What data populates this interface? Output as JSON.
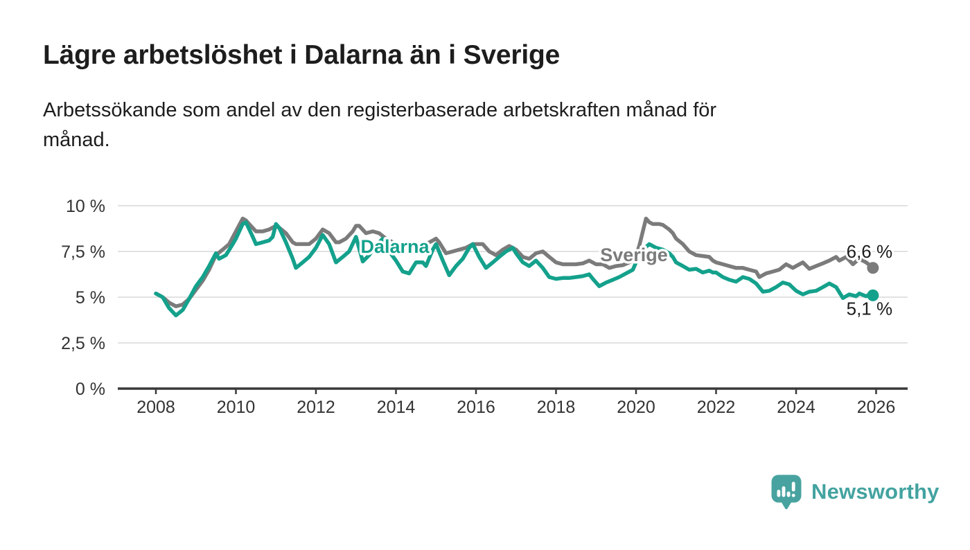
{
  "header": {
    "title": "Lägre arbetslöshet i Dalarna än i Sverige",
    "subtitle": "Arbetssökande som andel av den registerbaserade arbetskraften månad för månad."
  },
  "branding": {
    "name": "Newsworthy",
    "icon": "newsworthy-speech-bubble-bar-chart-icon",
    "color": "#43a3a0"
  },
  "colors": {
    "background": "#ffffff",
    "title_text": "#1d1d1d",
    "axis_text": "#333333",
    "gridline": "#d8d8d8",
    "axis_line": "#3a3a3a",
    "sverige_line": "#7b7b7b",
    "dalarna_line": "#14a18c",
    "end_label_text": "#1d1d1d"
  },
  "chart_data": {
    "type": "line",
    "title": "Lägre arbetslöshet i Dalarna än i Sverige",
    "subtitle": "Arbetssökande som andel av den registerbaserade arbetskraften månad för månad.",
    "xlabel": "",
    "ylabel": "",
    "unit": "%",
    "grid": "horizontal-only",
    "legend_position": "inline-labels-on-lines",
    "x_axis": {
      "range": [
        2007.05,
        2026.8
      ],
      "ticks": [
        2008,
        2010,
        2012,
        2014,
        2016,
        2018,
        2020,
        2022,
        2024,
        2026
      ],
      "tick_labels": [
        "2008",
        "2010",
        "2012",
        "2014",
        "2016",
        "2018",
        "2020",
        "2022",
        "2024",
        "2026"
      ]
    },
    "y_axis": {
      "range": [
        0,
        10
      ],
      "ticks": [
        {
          "value": 0,
          "label": "0 %"
        },
        {
          "value": 2.5,
          "label": "2,5 %"
        },
        {
          "value": 5,
          "label": "5 %"
        },
        {
          "value": 7.5,
          "label": "7,5 %"
        },
        {
          "value": 10,
          "label": "10 %"
        }
      ]
    },
    "series": [
      {
        "name": "Sverige",
        "color": "#7b7b7b",
        "inline_label": "Sverige",
        "end_label": "6,6 %",
        "end_value": 6.6,
        "points": [
          [
            2008.0,
            5.2
          ],
          [
            2008.17,
            5.0
          ],
          [
            2008.33,
            4.7
          ],
          [
            2008.5,
            4.5
          ],
          [
            2008.67,
            4.6
          ],
          [
            2008.83,
            4.9
          ],
          [
            2009.0,
            5.4
          ],
          [
            2009.17,
            5.9
          ],
          [
            2009.33,
            6.5
          ],
          [
            2009.5,
            7.3
          ],
          [
            2009.67,
            7.6
          ],
          [
            2009.83,
            7.9
          ],
          [
            2010.0,
            8.6
          ],
          [
            2010.17,
            9.3
          ],
          [
            2010.25,
            9.2
          ],
          [
            2010.33,
            9.0
          ],
          [
            2010.5,
            8.6
          ],
          [
            2010.67,
            8.6
          ],
          [
            2010.83,
            8.7
          ],
          [
            2011.0,
            8.9
          ],
          [
            2011.08,
            8.8
          ],
          [
            2011.25,
            8.5
          ],
          [
            2011.42,
            8.0
          ],
          [
            2011.5,
            7.9
          ],
          [
            2011.67,
            7.9
          ],
          [
            2011.83,
            7.9
          ],
          [
            2012.0,
            8.2
          ],
          [
            2012.17,
            8.7
          ],
          [
            2012.33,
            8.5
          ],
          [
            2012.5,
            8.0
          ],
          [
            2012.58,
            8.0
          ],
          [
            2012.75,
            8.2
          ],
          [
            2012.92,
            8.6
          ],
          [
            2013.0,
            8.9
          ],
          [
            2013.08,
            8.9
          ],
          [
            2013.25,
            8.5
          ],
          [
            2013.42,
            8.6
          ],
          [
            2013.58,
            8.5
          ],
          [
            2013.75,
            8.2
          ],
          [
            2013.92,
            8.0
          ],
          [
            2014.08,
            7.9
          ],
          [
            2014.25,
            7.8
          ],
          [
            2014.42,
            7.9
          ],
          [
            2014.58,
            7.9
          ],
          [
            2014.75,
            7.9
          ],
          [
            2014.92,
            8.1
          ],
          [
            2015.0,
            8.2
          ],
          [
            2015.08,
            8.0
          ],
          [
            2015.25,
            7.4
          ],
          [
            2015.42,
            7.5
          ],
          [
            2015.58,
            7.6
          ],
          [
            2015.75,
            7.7
          ],
          [
            2015.92,
            7.9
          ],
          [
            2016.0,
            7.9
          ],
          [
            2016.17,
            7.9
          ],
          [
            2016.33,
            7.5
          ],
          [
            2016.5,
            7.3
          ],
          [
            2016.67,
            7.6
          ],
          [
            2016.83,
            7.8
          ],
          [
            2017.0,
            7.6
          ],
          [
            2017.17,
            7.2
          ],
          [
            2017.33,
            7.1
          ],
          [
            2017.5,
            7.4
          ],
          [
            2017.67,
            7.5
          ],
          [
            2017.83,
            7.2
          ],
          [
            2018.0,
            6.9
          ],
          [
            2018.17,
            6.8
          ],
          [
            2018.33,
            6.8
          ],
          [
            2018.5,
            6.8
          ],
          [
            2018.67,
            6.85
          ],
          [
            2018.83,
            7.0
          ],
          [
            2019.0,
            6.8
          ],
          [
            2019.17,
            6.8
          ],
          [
            2019.33,
            6.6
          ],
          [
            2019.5,
            6.7
          ],
          [
            2019.67,
            6.75
          ],
          [
            2019.83,
            6.9
          ],
          [
            2019.92,
            7.0
          ],
          [
            2020.0,
            7.3
          ],
          [
            2020.08,
            7.8
          ],
          [
            2020.25,
            9.3
          ],
          [
            2020.33,
            9.1
          ],
          [
            2020.42,
            9.0
          ],
          [
            2020.58,
            9.0
          ],
          [
            2020.67,
            8.95
          ],
          [
            2020.83,
            8.7
          ],
          [
            2020.92,
            8.5
          ],
          [
            2021.0,
            8.2
          ],
          [
            2021.17,
            7.9
          ],
          [
            2021.33,
            7.5
          ],
          [
            2021.5,
            7.3
          ],
          [
            2021.67,
            7.25
          ],
          [
            2021.83,
            7.2
          ],
          [
            2021.92,
            7.0
          ],
          [
            2022.0,
            6.9
          ],
          [
            2022.17,
            6.8
          ],
          [
            2022.33,
            6.7
          ],
          [
            2022.5,
            6.6
          ],
          [
            2022.67,
            6.6
          ],
          [
            2022.83,
            6.5
          ],
          [
            2023.0,
            6.4
          ],
          [
            2023.08,
            6.1
          ],
          [
            2023.25,
            6.3
          ],
          [
            2023.42,
            6.4
          ],
          [
            2023.58,
            6.5
          ],
          [
            2023.75,
            6.8
          ],
          [
            2023.92,
            6.6
          ],
          [
            2024.0,
            6.7
          ],
          [
            2024.17,
            6.9
          ],
          [
            2024.33,
            6.55
          ],
          [
            2024.5,
            6.7
          ],
          [
            2024.67,
            6.85
          ],
          [
            2024.83,
            7.0
          ],
          [
            2025.0,
            7.2
          ],
          [
            2025.08,
            7.0
          ],
          [
            2025.25,
            7.2
          ],
          [
            2025.42,
            6.8
          ],
          [
            2025.58,
            7.1
          ],
          [
            2025.75,
            6.9
          ],
          [
            2025.92,
            6.6
          ]
        ]
      },
      {
        "name": "Dalarna",
        "color": "#14a18c",
        "inline_label": "Dalarna",
        "end_label": "5,1 %",
        "end_value": 5.1,
        "points": [
          [
            2008.0,
            5.2
          ],
          [
            2008.17,
            5.0
          ],
          [
            2008.33,
            4.4
          ],
          [
            2008.5,
            4.0
          ],
          [
            2008.67,
            4.3
          ],
          [
            2008.83,
            4.9
          ],
          [
            2009.0,
            5.6
          ],
          [
            2009.17,
            6.1
          ],
          [
            2009.33,
            6.7
          ],
          [
            2009.5,
            7.4
          ],
          [
            2009.58,
            7.1
          ],
          [
            2009.75,
            7.3
          ],
          [
            2009.92,
            7.9
          ],
          [
            2010.0,
            8.2
          ],
          [
            2010.17,
            9.0
          ],
          [
            2010.25,
            9.1
          ],
          [
            2010.42,
            8.3
          ],
          [
            2010.5,
            7.9
          ],
          [
            2010.67,
            8.0
          ],
          [
            2010.83,
            8.1
          ],
          [
            2010.92,
            8.3
          ],
          [
            2011.0,
            9.0
          ],
          [
            2011.08,
            8.8
          ],
          [
            2011.25,
            8.0
          ],
          [
            2011.42,
            7.1
          ],
          [
            2011.5,
            6.6
          ],
          [
            2011.67,
            6.9
          ],
          [
            2011.83,
            7.2
          ],
          [
            2012.0,
            7.7
          ],
          [
            2012.17,
            8.4
          ],
          [
            2012.33,
            7.9
          ],
          [
            2012.5,
            6.9
          ],
          [
            2012.67,
            7.2
          ],
          [
            2012.83,
            7.5
          ],
          [
            2013.0,
            8.3
          ],
          [
            2013.17,
            6.95
          ],
          [
            2013.33,
            7.3
          ],
          [
            2013.5,
            7.8
          ],
          [
            2013.67,
            8.2
          ],
          [
            2013.83,
            7.5
          ],
          [
            2014.0,
            7.0
          ],
          [
            2014.17,
            6.4
          ],
          [
            2014.33,
            6.3
          ],
          [
            2014.5,
            6.9
          ],
          [
            2014.67,
            6.9
          ],
          [
            2014.75,
            6.7
          ],
          [
            2014.92,
            7.6
          ],
          [
            2015.0,
            7.9
          ],
          [
            2015.17,
            7.0
          ],
          [
            2015.33,
            6.2
          ],
          [
            2015.5,
            6.7
          ],
          [
            2015.67,
            7.1
          ],
          [
            2015.83,
            7.7
          ],
          [
            2015.92,
            7.9
          ],
          [
            2016.08,
            7.2
          ],
          [
            2016.25,
            6.6
          ],
          [
            2016.42,
            6.9
          ],
          [
            2016.58,
            7.2
          ],
          [
            2016.75,
            7.5
          ],
          [
            2016.92,
            7.7
          ],
          [
            2017.0,
            7.4
          ],
          [
            2017.17,
            6.9
          ],
          [
            2017.33,
            6.7
          ],
          [
            2017.5,
            7.0
          ],
          [
            2017.67,
            6.6
          ],
          [
            2017.83,
            6.1
          ],
          [
            2018.0,
            6.0
          ],
          [
            2018.17,
            6.05
          ],
          [
            2018.33,
            6.05
          ],
          [
            2018.5,
            6.1
          ],
          [
            2018.67,
            6.15
          ],
          [
            2018.83,
            6.25
          ],
          [
            2018.92,
            6.0
          ],
          [
            2019.08,
            5.6
          ],
          [
            2019.25,
            5.8
          ],
          [
            2019.42,
            5.95
          ],
          [
            2019.58,
            6.1
          ],
          [
            2019.75,
            6.3
          ],
          [
            2019.92,
            6.5
          ],
          [
            2020.0,
            6.9
          ],
          [
            2020.17,
            7.6
          ],
          [
            2020.33,
            7.9
          ],
          [
            2020.5,
            7.7
          ],
          [
            2020.67,
            7.6
          ],
          [
            2020.83,
            7.4
          ],
          [
            2020.92,
            7.2
          ],
          [
            2021.0,
            6.9
          ],
          [
            2021.17,
            6.7
          ],
          [
            2021.33,
            6.5
          ],
          [
            2021.5,
            6.55
          ],
          [
            2021.67,
            6.35
          ],
          [
            2021.83,
            6.45
          ],
          [
            2021.92,
            6.35
          ],
          [
            2022.0,
            6.35
          ],
          [
            2022.17,
            6.1
          ],
          [
            2022.33,
            5.95
          ],
          [
            2022.5,
            5.85
          ],
          [
            2022.67,
            6.1
          ],
          [
            2022.83,
            6.0
          ],
          [
            2023.0,
            5.75
          ],
          [
            2023.17,
            5.3
          ],
          [
            2023.33,
            5.35
          ],
          [
            2023.5,
            5.55
          ],
          [
            2023.67,
            5.8
          ],
          [
            2023.83,
            5.7
          ],
          [
            2024.0,
            5.35
          ],
          [
            2024.17,
            5.15
          ],
          [
            2024.33,
            5.3
          ],
          [
            2024.5,
            5.35
          ],
          [
            2024.67,
            5.55
          ],
          [
            2024.83,
            5.75
          ],
          [
            2025.0,
            5.55
          ],
          [
            2025.17,
            4.95
          ],
          [
            2025.33,
            5.15
          ],
          [
            2025.5,
            5.05
          ],
          [
            2025.58,
            5.2
          ],
          [
            2025.75,
            5.05
          ],
          [
            2025.83,
            5.15
          ],
          [
            2025.92,
            5.1
          ]
        ]
      }
    ]
  }
}
